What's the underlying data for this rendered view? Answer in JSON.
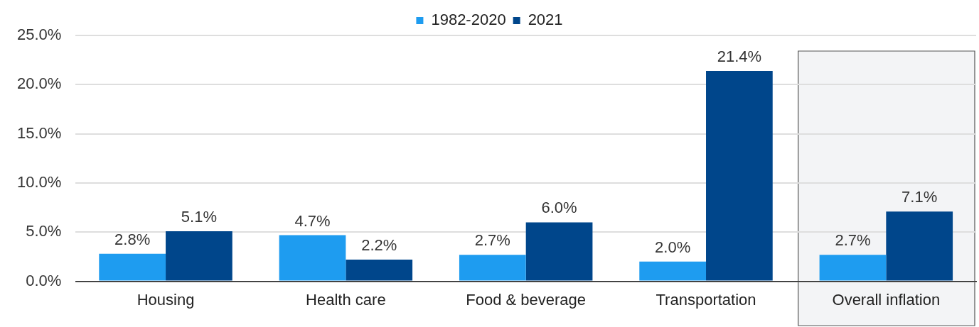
{
  "chart_data": {
    "type": "bar",
    "categories": [
      "Housing",
      "Health care",
      "Food & beverage",
      "Transportation",
      "Overall inflation"
    ],
    "series": [
      {
        "name": "1982-2020",
        "color": "#1e9cf0",
        "values": [
          2.8,
          4.7,
          2.7,
          2.0,
          2.7
        ],
        "value_labels": [
          "2.8%",
          "4.7%",
          "2.7%",
          "2.0%",
          "2.7%"
        ]
      },
      {
        "name": "2021",
        "color": "#00468b",
        "values": [
          5.1,
          2.2,
          6.0,
          21.4,
          7.1
        ],
        "value_labels": [
          "5.1%",
          "2.2%",
          "6.0%",
          "21.4%",
          "7.1%"
        ]
      }
    ],
    "ylim": [
      0,
      25
    ],
    "yticks": [
      {
        "value": 0,
        "label": "0.0%"
      },
      {
        "value": 5,
        "label": "5.0%"
      },
      {
        "value": 10,
        "label": "10.0%"
      },
      {
        "value": 15,
        "label": "15.0%"
      },
      {
        "value": 20,
        "label": "20.0%"
      },
      {
        "value": 25,
        "label": "25.0%"
      }
    ],
    "grid": "y",
    "legend": "top",
    "bands": [
      {
        "axis": "x",
        "from": "Overall inflation",
        "to": "Overall inflation",
        "color": "#f3f4f6"
      }
    ]
  }
}
